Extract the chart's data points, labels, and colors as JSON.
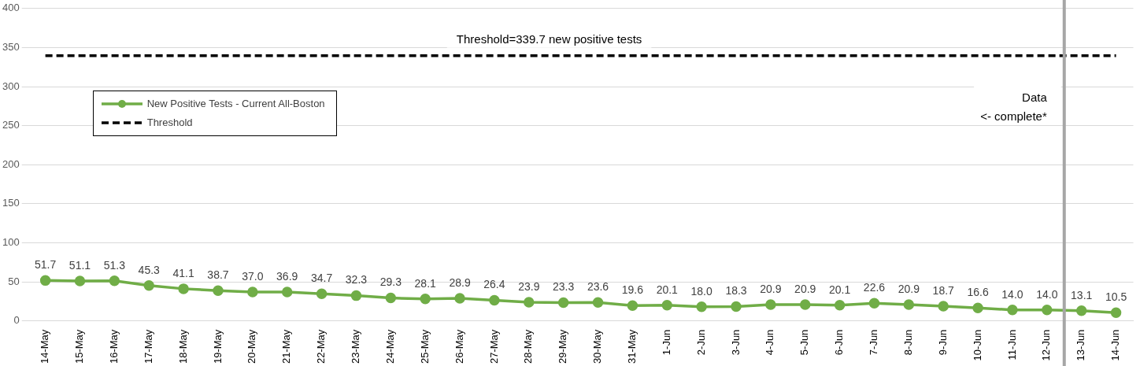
{
  "chart_data": {
    "type": "line",
    "categories": [
      "14-May",
      "15-May",
      "16-May",
      "17-May",
      "18-May",
      "19-May",
      "20-May",
      "21-May",
      "22-May",
      "23-May",
      "24-May",
      "25-May",
      "26-May",
      "27-May",
      "28-May",
      "29-May",
      "30-May",
      "31-May",
      "1-Jun",
      "2-Jun",
      "3-Jun",
      "4-Jun",
      "5-Jun",
      "6-Jun",
      "7-Jun",
      "8-Jun",
      "9-Jun",
      "10-Jun",
      "11-Jun",
      "12-Jun",
      "13-Jun",
      "14-Jun"
    ],
    "series": [
      {
        "name": "New Positive Tests - Current All-Boston",
        "color": "#70ad47",
        "marker": "circle",
        "line_style": "solid",
        "values": [
          51.7,
          51.1,
          51.3,
          45.3,
          41.1,
          38.7,
          37.0,
          36.9,
          34.7,
          32.3,
          29.3,
          28.1,
          28.9,
          26.4,
          23.9,
          23.3,
          23.6,
          19.6,
          20.1,
          18.0,
          18.3,
          20.9,
          20.9,
          20.1,
          22.6,
          20.9,
          18.7,
          16.6,
          14.0,
          14.0,
          13.1,
          10.5
        ],
        "value_labels": [
          "51.7",
          "51.1",
          "51.3",
          "45.3",
          "41.1",
          "38.7",
          "37.0",
          "36.9",
          "34.7",
          "32.3",
          "29.3",
          "28.1",
          "28.9",
          "26.4",
          "23.9",
          "23.3",
          "23.6",
          "19.6",
          "20.1",
          "18.0",
          "18.3",
          "20.9",
          "20.9",
          "20.1",
          "22.6",
          "20.9",
          "18.7",
          "16.6",
          "14.0",
          "14.0",
          "13.1",
          "10.5"
        ]
      },
      {
        "name": "Threshold",
        "color": "#000000",
        "marker": "none",
        "line_style": "dashed",
        "values": [
          339.7,
          339.7,
          339.7,
          339.7,
          339.7,
          339.7,
          339.7,
          339.7,
          339.7,
          339.7,
          339.7,
          339.7,
          339.7,
          339.7,
          339.7,
          339.7,
          339.7,
          339.7,
          339.7,
          339.7,
          339.7,
          339.7,
          339.7,
          339.7,
          339.7,
          339.7,
          339.7,
          339.7,
          339.7,
          339.7,
          339.7,
          339.7
        ]
      }
    ],
    "ylim": [
      0,
      400
    ],
    "yticks": [
      0,
      50,
      100,
      150,
      200,
      250,
      300,
      350,
      400
    ],
    "grid": "y",
    "legend": "top left",
    "annotations": [
      {
        "text": "Threshold=339.7 new positive tests",
        "y": 339.7
      }
    ],
    "ref_lines": [
      {
        "axis": "x",
        "value": "12-Jun",
        "label": "Data\n<- complete*",
        "color": "#a6a6a6"
      }
    ]
  }
}
